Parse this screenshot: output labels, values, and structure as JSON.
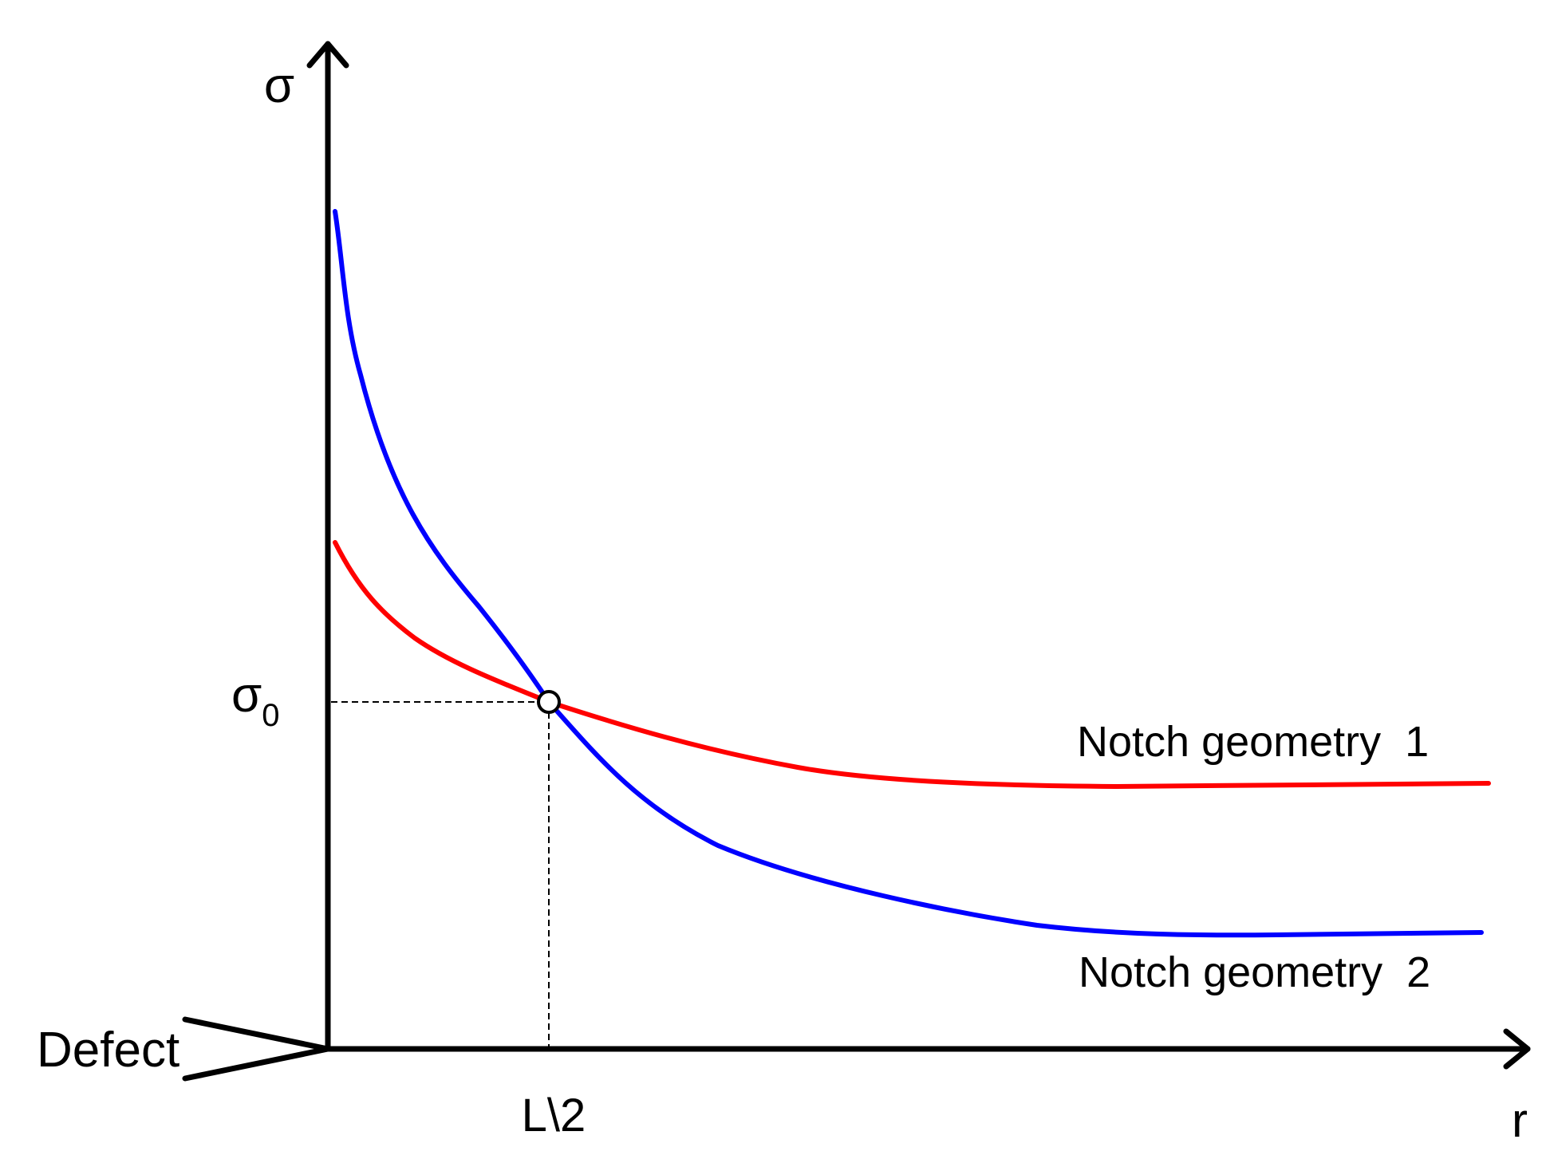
{
  "axes": {
    "y_label": "σ",
    "x_label": "r"
  },
  "markers": {
    "stress_threshold_symbol": "σ",
    "stress_threshold_subscript": "0",
    "distance_label": "L\\2"
  },
  "defect_label": "Defect",
  "curves": [
    {
      "label": "Notch geometry  1",
      "color": "#ff0000"
    },
    {
      "label": "Notch geometry  2",
      "color": "#0000ff"
    }
  ]
}
